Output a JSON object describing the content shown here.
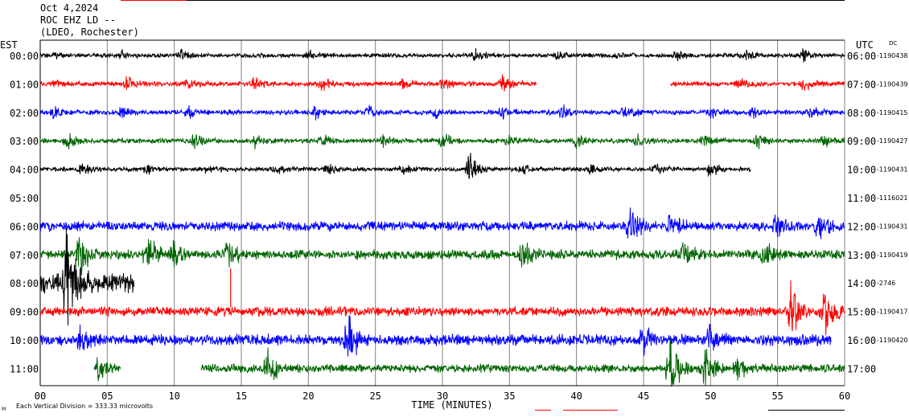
{
  "header": {
    "date": "Oct 4,2024",
    "station": "ROC EHZ LD --",
    "network": "(LDEO, Rochester)"
  },
  "chart_data": {
    "type": "line",
    "title": "",
    "left_zone_label": "EST",
    "right_zone_label": "UTC",
    "dc_label": "DC",
    "xlabel": "TIME (MINUTES)",
    "xlim": [
      0,
      60
    ],
    "xticks": [
      "00",
      "05",
      "10",
      "15",
      "20",
      "25",
      "30",
      "35",
      "40",
      "45",
      "50",
      "55",
      "60"
    ],
    "grid": true,
    "footer_note": "Each Vertical Division = 333.33 microvolts",
    "footer_mark": "M",
    "colors": [
      "#000000",
      "#ff0000",
      "#0000ff",
      "#006400"
    ],
    "rows": [
      {
        "est": "00:00",
        "utc": "06:00",
        "dc": "-1190438",
        "color": "#000000",
        "start": 0,
        "end": 60,
        "amp": 3,
        "bursts": [
          [
            1,
            1.5
          ],
          [
            6,
            2
          ],
          [
            10.5,
            2
          ],
          [
            20,
            2
          ],
          [
            25,
            1.4
          ],
          [
            32.5,
            2.2
          ],
          [
            38.5,
            2
          ],
          [
            43,
            1.7
          ],
          [
            47.5,
            2
          ],
          [
            52.5,
            2
          ],
          [
            57,
            2.3
          ]
        ]
      },
      {
        "est": "01:00",
        "utc": "07:00",
        "dc": "-1190439",
        "color": "#ff0000",
        "start": 0,
        "end": 37,
        "start2": 47,
        "end2": 60,
        "amp": 3.5,
        "bursts": [
          [
            1,
            1.5
          ],
          [
            6.5,
            2.2
          ],
          [
            11,
            2
          ],
          [
            16,
            2
          ],
          [
            21,
            2
          ],
          [
            27,
            2
          ],
          [
            30,
            2
          ],
          [
            34.5,
            2.5
          ],
          [
            52,
            2
          ],
          [
            57,
            2
          ]
        ]
      },
      {
        "est": "02:00",
        "utc": "08:00",
        "dc": "-1190415",
        "color": "#0000ff",
        "start": 0,
        "end": 60,
        "amp": 3.5,
        "bursts": [
          [
            1,
            2
          ],
          [
            6,
            2
          ],
          [
            11,
            2
          ],
          [
            20.5,
            2
          ],
          [
            24.5,
            2
          ],
          [
            29.5,
            1.8
          ],
          [
            34.5,
            2
          ],
          [
            39,
            2.3
          ],
          [
            43.5,
            2
          ],
          [
            50,
            2
          ],
          [
            53,
            2
          ],
          [
            57.5,
            2
          ]
        ]
      },
      {
        "est": "03:00",
        "utc": "09:00",
        "dc": "-1190427",
        "color": "#006400",
        "start": 0,
        "end": 60,
        "amp": 3.5,
        "bursts": [
          [
            2,
            2.3
          ],
          [
            11.5,
            2
          ],
          [
            16,
            2
          ],
          [
            21,
            2
          ],
          [
            25.5,
            2
          ],
          [
            30,
            2.3
          ],
          [
            35,
            2
          ],
          [
            40,
            2
          ],
          [
            44.5,
            2
          ],
          [
            49.5,
            2
          ],
          [
            53.5,
            2.2
          ],
          [
            58.5,
            2
          ]
        ]
      },
      {
        "est": "04:00",
        "utc": "10:00",
        "dc": "-1190431",
        "color": "#000000",
        "start": 0,
        "end": 53,
        "amp": 3,
        "bursts": [
          [
            3,
            2.3
          ],
          [
            8,
            2
          ],
          [
            12.5,
            2
          ],
          [
            17.5,
            2
          ],
          [
            21.5,
            1.8
          ],
          [
            27,
            2
          ],
          [
            32,
            4
          ],
          [
            36,
            2
          ],
          [
            41,
            2
          ],
          [
            46,
            2
          ],
          [
            50,
            2.5
          ]
        ]
      },
      {
        "est": "05:00",
        "utc": "11:00",
        "dc": "-1116021",
        "color": "#0000ff",
        "start": 0,
        "end": 0,
        "amp": 0,
        "bursts": []
      },
      {
        "est": "06:00",
        "utc": "12:00",
        "dc": "-1190431",
        "color": "#0000ff",
        "start": 0,
        "end": 60,
        "amp": 7,
        "bursts": [
          [
            44,
            2.5
          ],
          [
            47,
            2
          ],
          [
            55,
            2
          ],
          [
            58,
            2
          ]
        ]
      },
      {
        "est": "07:00",
        "utc": "13:00",
        "dc": "-1190419",
        "color": "#006400",
        "start": 0,
        "end": 60,
        "amp": 7,
        "bursts": [
          [
            3,
            3
          ],
          [
            8,
            2.5
          ],
          [
            10,
            2
          ],
          [
            14,
            2
          ],
          [
            36,
            2
          ],
          [
            48,
            2
          ],
          [
            54,
            2
          ]
        ]
      },
      {
        "est": "08:00",
        "utc": "14:00",
        "dc": "-2746",
        "color": "#000000",
        "start": 0,
        "end": 7,
        "amp": 14,
        "bursts": [
          [
            2,
            3.5
          ]
        ],
        "marker_at": 14.2
      },
      {
        "est": "09:00",
        "utc": "15:00",
        "dc": "-1190417",
        "color": "#ff0000",
        "start": 0,
        "end": 60,
        "amp": 7,
        "bursts": [
          [
            56,
            3.2
          ],
          [
            58.5,
            3
          ]
        ]
      },
      {
        "est": "10:00",
        "utc": "16:00",
        "dc": "-1190420",
        "color": "#0000ff",
        "start": 0,
        "end": 59,
        "amp": 8,
        "bursts": [
          [
            23,
            3
          ],
          [
            3,
            2
          ],
          [
            45,
            2
          ],
          [
            50,
            2
          ]
        ]
      },
      {
        "est": "11:00",
        "utc": "17:00",
        "dc": "",
        "color": "#006400",
        "start": 12,
        "end": 60,
        "amp": 6,
        "bursts": [
          [
            17,
            3
          ],
          [
            47,
            4.5
          ],
          [
            49.5,
            3
          ],
          [
            52,
            2
          ]
        ],
        "pre_segments": [
          [
            4,
            6
          ]
        ]
      }
    ]
  },
  "bars": {
    "top_red": "#ff0000",
    "top_black": "#000000",
    "bottom_red": "#ff0000",
    "bottom_black": "#000000"
  }
}
